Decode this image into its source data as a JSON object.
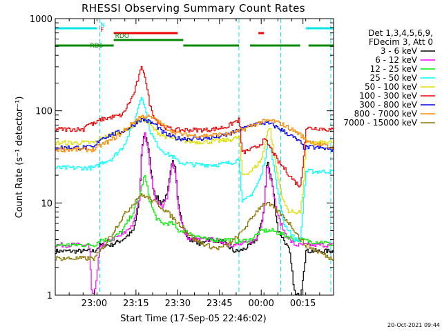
{
  "chart_data": {
    "type": "line",
    "title": "RHESSI Observing Summary Count Rates",
    "xlabel": "Start Time (17-Sep-05 22:46:02)",
    "ylabel": "Count Rate (s⁻¹ detector⁻¹)",
    "yscale": "log",
    "ylim": [
      1,
      1000
    ],
    "xlim_minutes_from_start": [
      0,
      100
    ],
    "x_ticks": [
      {
        "t": 14,
        "label": "23:00"
      },
      {
        "t": 29,
        "label": "23:15"
      },
      {
        "t": 44,
        "label": "23:30"
      },
      {
        "t": 59,
        "label": "23:45"
      },
      {
        "t": 74,
        "label": "00:00"
      },
      {
        "t": 89,
        "label": "00:15"
      }
    ],
    "y_ticks": [
      {
        "v": 1,
        "label": "1"
      },
      {
        "v": 10,
        "label": "10"
      },
      {
        "v": 100,
        "label": "100"
      },
      {
        "v": 1000,
        "label": "1000"
      }
    ],
    "legend_header": [
      "Det 1,3,4,5,6,9,",
      "FDecim 3, Att 0"
    ],
    "legend_placement": "right",
    "grid": false,
    "flags": [
      {
        "label": "N",
        "color": "#00e5ee",
        "segments": [
          [
            0,
            15
          ],
          [
            90,
            100
          ]
        ]
      },
      {
        "label": "F",
        "color": "#ee0000",
        "segments": [
          [
            21,
            44
          ],
          [
            73,
            75
          ]
        ]
      },
      {
        "label": "RDO",
        "color": "#008800",
        "segments": [
          [
            21,
            46
          ]
        ]
      },
      {
        "label": "RD6",
        "color": "#008800",
        "segments": [
          [
            0,
            21
          ],
          [
            46,
            66
          ],
          [
            70,
            88
          ],
          [
            91,
            100
          ]
        ]
      }
    ],
    "night_boundaries": [
      16,
      66,
      81,
      99
    ],
    "series": [
      {
        "name": "3 - 6 keV",
        "color": "#000000",
        "x": [
          0,
          14,
          16,
          20,
          24,
          28,
          30,
          31,
          32,
          33,
          35,
          36,
          38,
          40,
          42,
          43,
          44,
          46,
          48,
          50,
          52,
          54,
          56,
          60,
          64,
          66,
          68,
          70,
          72,
          74,
          75,
          76,
          78,
          79,
          80,
          82,
          84,
          86,
          88,
          90,
          92,
          94,
          96,
          99
        ],
        "y": [
          3,
          3,
          3.5,
          3.5,
          4,
          5,
          10,
          40,
          60,
          45,
          15,
          12,
          10,
          12,
          30,
          25,
          10,
          5,
          4,
          4,
          3.5,
          4,
          4,
          3.8,
          3,
          3,
          3.2,
          3.5,
          4,
          6,
          10,
          30,
          15,
          8,
          5,
          4,
          3,
          1,
          1,
          3,
          3,
          3,
          3,
          3
        ]
      },
      {
        "name": "6 - 12 keV",
        "color": "#ff00ff",
        "x": [
          0,
          12,
          13,
          14,
          16,
          20,
          24,
          28,
          30,
          31,
          32,
          33,
          35,
          36,
          38,
          40,
          42,
          43,
          44,
          46,
          48,
          50,
          52,
          56,
          60,
          64,
          66,
          70,
          72,
          74,
          75,
          76,
          78,
          80,
          82,
          84,
          86,
          88,
          90,
          94,
          99
        ],
        "y": [
          3.5,
          3.5,
          1,
          1,
          3.5,
          4,
          4.5,
          6,
          11,
          40,
          60,
          40,
          14,
          11,
          9,
          11,
          28,
          22,
          9,
          5,
          4,
          4,
          4,
          4,
          3.8,
          3.5,
          3.5,
          3.8,
          4,
          6,
          10,
          28,
          14,
          7,
          5,
          4,
          3.5,
          3.5,
          3.5,
          3.5,
          3.5
        ]
      },
      {
        "name": "12 - 25 keV",
        "color": "#00ee00",
        "x": [
          0,
          14,
          16,
          20,
          24,
          28,
          30,
          32,
          34,
          36,
          38,
          40,
          42,
          44,
          46,
          50,
          54,
          58,
          62,
          66,
          70,
          74,
          78,
          82,
          86,
          88,
          92,
          96,
          99
        ],
        "y": [
          3.5,
          3.5,
          4,
          4,
          5,
          8,
          12,
          20,
          10,
          7,
          6,
          6,
          6,
          5,
          5,
          4.5,
          4,
          4,
          4,
          3.8,
          4,
          5,
          5,
          4.5,
          4,
          4,
          3.8,
          3.8,
          3.5
        ]
      },
      {
        "name": "25 - 50 keV",
        "color": "#00ffff",
        "x": [
          0,
          14,
          15,
          16,
          20,
          24,
          28,
          30,
          31,
          32,
          33,
          34,
          36,
          38,
          40,
          42,
          43,
          44,
          46,
          50,
          54,
          58,
          62,
          64,
          66,
          67,
          70,
          72,
          74,
          75,
          76,
          77,
          78,
          80,
          82,
          84,
          86,
          88,
          89,
          90,
          94,
          99
        ],
        "y": [
          24,
          24,
          25,
          27,
          30,
          40,
          70,
          120,
          150,
          110,
          80,
          60,
          45,
          38,
          34,
          32,
          30,
          28,
          27,
          26,
          26,
          26,
          27,
          28,
          30,
          10,
          12,
          15,
          20,
          28,
          40,
          45,
          30,
          12,
          6,
          5,
          4,
          4,
          10,
          22,
          22,
          22
        ]
      },
      {
        "name": "50 - 100 keV",
        "color": "#dddd00",
        "x": [
          0,
          14,
          15,
          16,
          20,
          24,
          28,
          30,
          31,
          32,
          33,
          34,
          36,
          38,
          40,
          42,
          44,
          46,
          50,
          54,
          58,
          62,
          64,
          66,
          67,
          70,
          72,
          74,
          75,
          76,
          77,
          78,
          80,
          82,
          84,
          86,
          88,
          89,
          90,
          94,
          99
        ],
        "y": [
          45,
          45,
          47,
          50,
          55,
          60,
          70,
          80,
          85,
          80,
          75,
          70,
          60,
          55,
          52,
          50,
          48,
          47,
          46,
          46,
          47,
          48,
          50,
          52,
          20,
          22,
          25,
          30,
          40,
          60,
          65,
          40,
          18,
          10,
          8,
          8,
          8,
          15,
          45,
          45,
          45
        ]
      },
      {
        "name": "100 - 300 keV",
        "color": "#ee0000",
        "x": [
          0,
          10,
          11,
          14,
          15,
          16,
          20,
          24,
          28,
          30,
          31,
          32,
          33,
          34,
          36,
          38,
          40,
          42,
          44,
          46,
          50,
          54,
          58,
          62,
          64,
          66,
          67,
          70,
          72,
          74,
          75,
          76,
          77,
          78,
          80,
          82,
          84,
          86,
          88,
          89,
          90,
          94,
          99
        ],
        "y": [
          63,
          63,
          72,
          72,
          75,
          80,
          85,
          90,
          150,
          240,
          300,
          250,
          160,
          110,
          80,
          70,
          65,
          63,
          62,
          62,
          62,
          62,
          64,
          68,
          75,
          80,
          35,
          38,
          40,
          45,
          48,
          45,
          40,
          36,
          28,
          24,
          20,
          17,
          15,
          30,
          65,
          65,
          62
        ]
      },
      {
        "name": "300 - 800 keV",
        "color": "#0000ee",
        "x": [
          0,
          14,
          15,
          16,
          20,
          24,
          28,
          30,
          32,
          34,
          36,
          38,
          40,
          42,
          44,
          46,
          50,
          54,
          58,
          62,
          64,
          66,
          68,
          70,
          72,
          74,
          76,
          78,
          80,
          82,
          84,
          86,
          88,
          89,
          90,
          94,
          99
        ],
        "y": [
          40,
          40,
          45,
          50,
          55,
          60,
          70,
          80,
          80,
          75,
          70,
          60,
          55,
          52,
          50,
          50,
          50,
          50,
          52,
          55,
          58,
          62,
          65,
          70,
          72,
          74,
          73,
          70,
          65,
          60,
          55,
          50,
          45,
          40,
          40,
          40,
          38
        ]
      },
      {
        "name": "800 - 7000 keV",
        "color": "#ff8800",
        "x": [
          0,
          14,
          16,
          20,
          24,
          28,
          30,
          32,
          34,
          36,
          38,
          40,
          42,
          44,
          46,
          50,
          54,
          58,
          62,
          66,
          70,
          74,
          78,
          82,
          86,
          88,
          90,
          94,
          99
        ],
        "y": [
          38,
          38,
          42,
          48,
          58,
          75,
          85,
          88,
          85,
          80,
          72,
          65,
          60,
          57,
          55,
          54,
          54,
          55,
          56,
          60,
          68,
          76,
          78,
          70,
          60,
          55,
          48,
          44,
          40
        ]
      },
      {
        "name": "7000 - 15000 keV",
        "color": "#8b7500",
        "x": [
          0,
          14,
          16,
          20,
          24,
          28,
          30,
          32,
          34,
          36,
          38,
          40,
          42,
          44,
          46,
          48,
          50,
          54,
          58,
          62,
          66,
          70,
          72,
          74,
          76,
          78,
          80,
          82,
          84,
          86,
          88,
          90,
          94,
          99
        ],
        "y": [
          2.5,
          2.5,
          3,
          4.5,
          7,
          10,
          12,
          12,
          11,
          10,
          9,
          8,
          7,
          6,
          5.5,
          4.5,
          4,
          3.5,
          3.2,
          3.5,
          4.5,
          6.5,
          8,
          9.5,
          10,
          9,
          8,
          7,
          6,
          5,
          4,
          3.5,
          3,
          2.5
        ]
      }
    ]
  },
  "footer": {
    "stamp": "20-Oct-2021 09:44"
  }
}
